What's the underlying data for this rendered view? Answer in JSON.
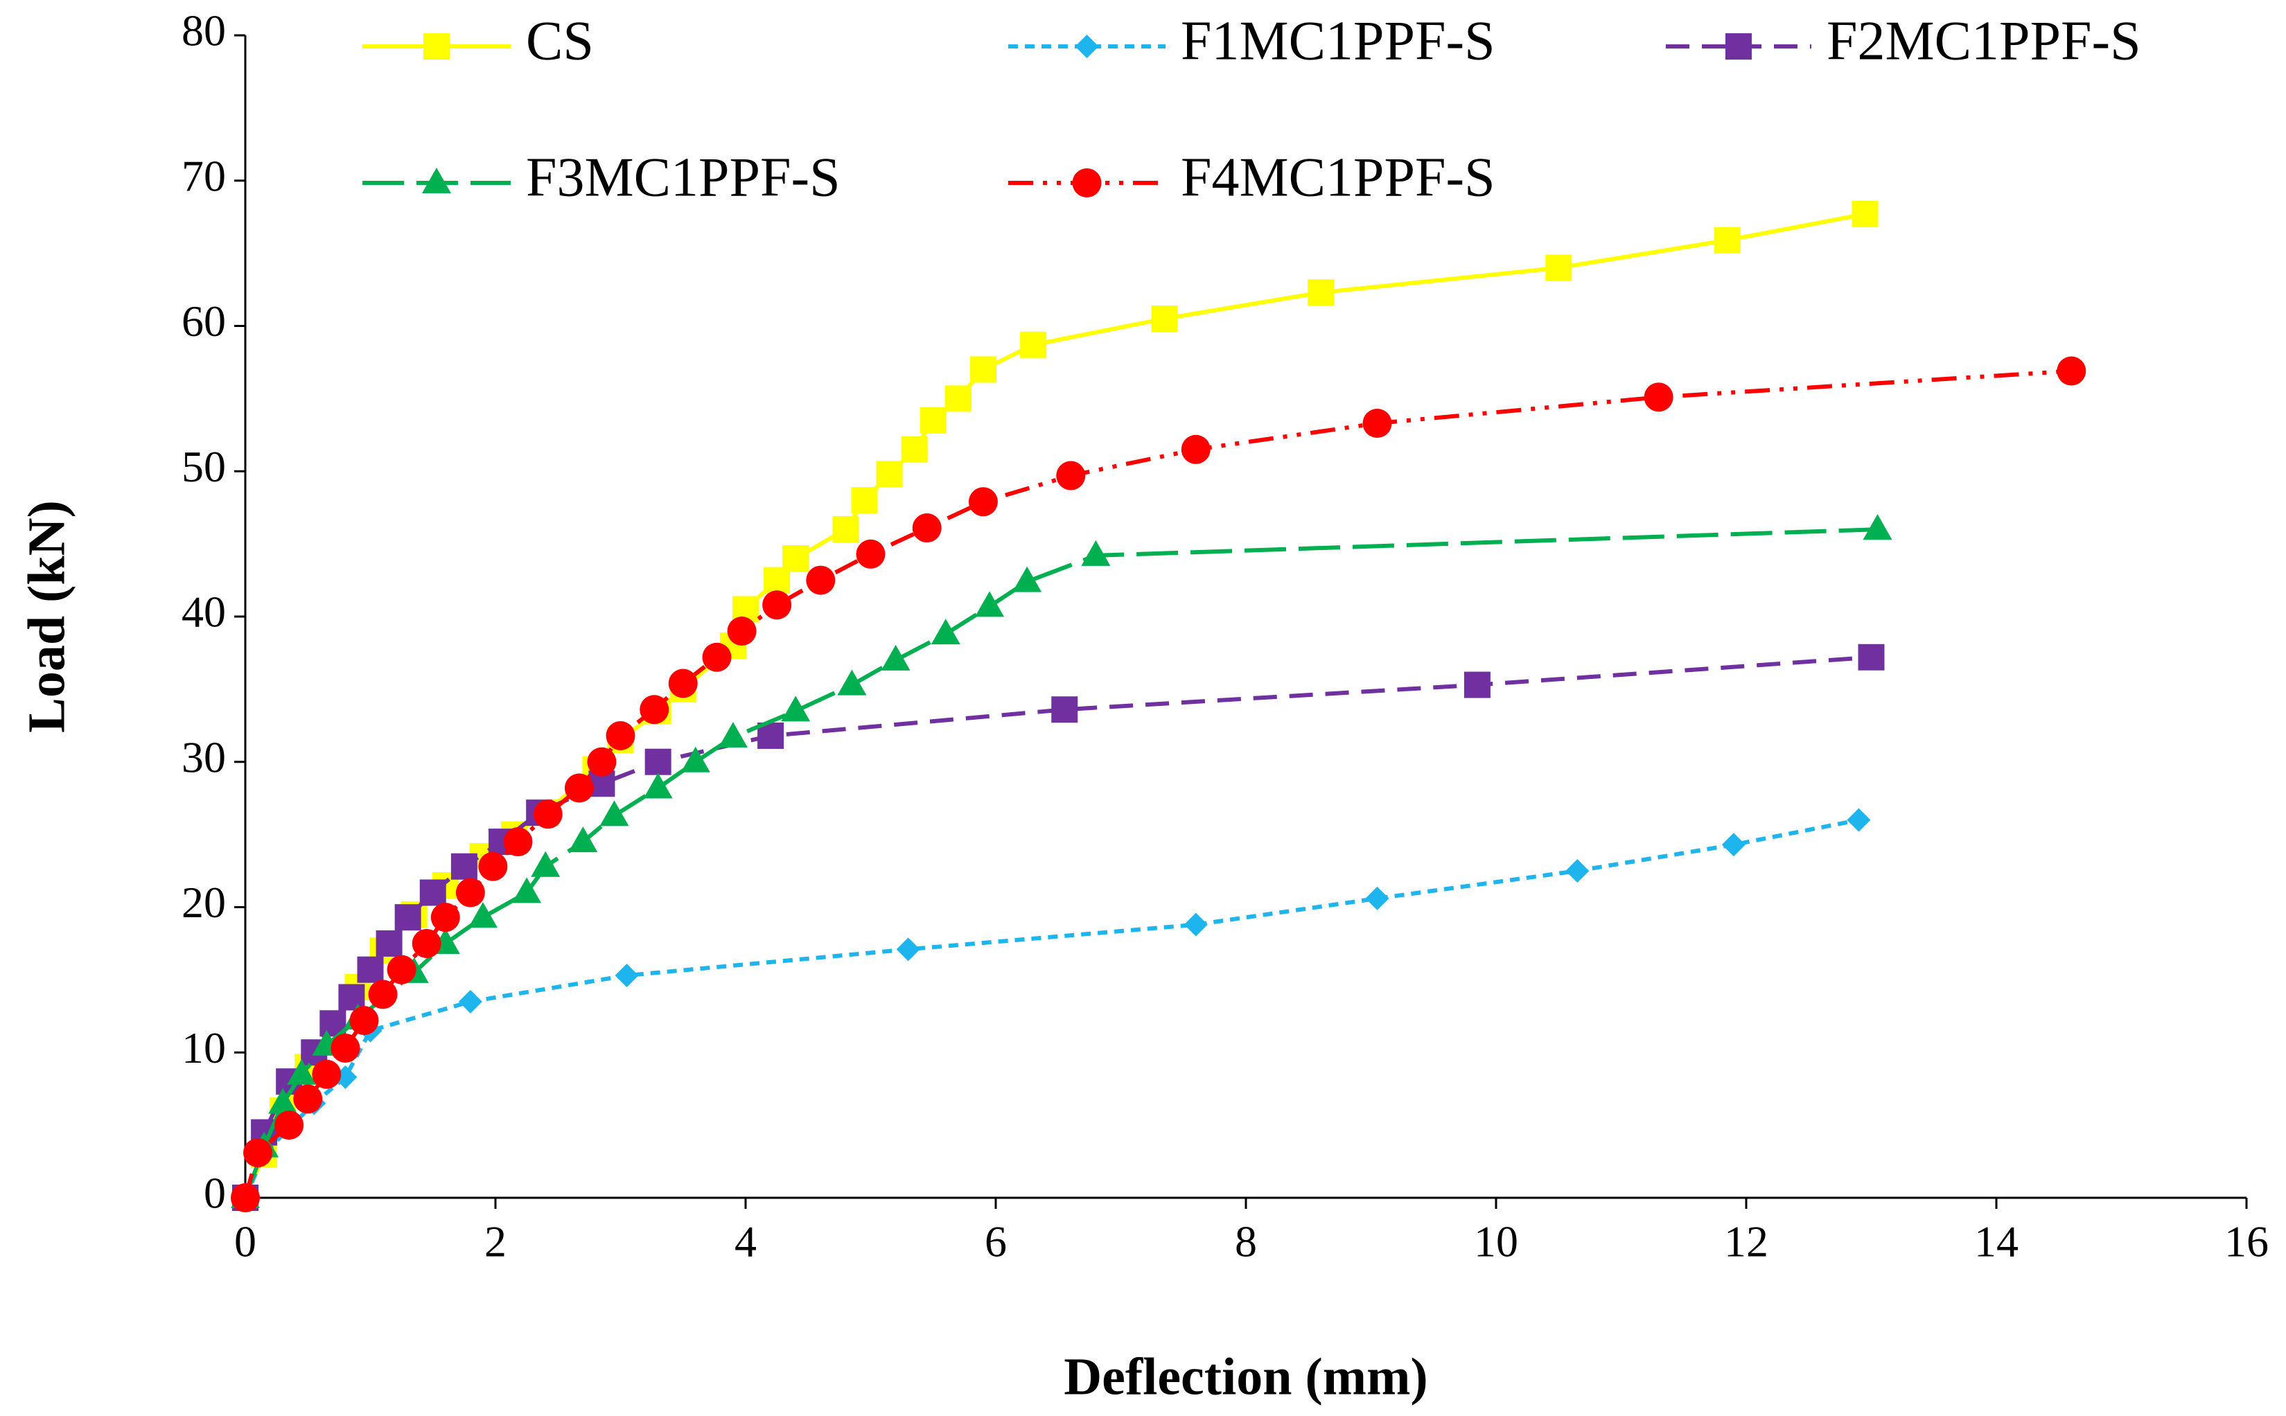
{
  "chart_data": {
    "type": "line",
    "x_label": "Deflection (mm)",
    "y_label": "Load (kN)",
    "xlim": [
      0,
      16
    ],
    "xticks": [
      0,
      2,
      4,
      6,
      8,
      10,
      12,
      14,
      16
    ],
    "ylim": [
      0,
      80
    ],
    "yticks": [
      0,
      10,
      20,
      30,
      40,
      50,
      60,
      70,
      80
    ],
    "grid": false,
    "legend": "top",
    "series": [
      {
        "name": "CS",
        "color": "#ffff00",
        "marker": "square",
        "line_style": "solid",
        "x": [
          0,
          0.15,
          0.3,
          0.5,
          0.7,
          0.9,
          1.1,
          1.35,
          1.6,
          1.9,
          2.15,
          2.4,
          2.8,
          3.0,
          3.3,
          3.5,
          3.9,
          4.0,
          4.25,
          4.4,
          4.8,
          4.95,
          5.15,
          5.35,
          5.5,
          5.7,
          5.9,
          6.3,
          7.35,
          8.6,
          10.5,
          11.85,
          12.95
        ],
        "values": [
          0,
          3,
          6,
          9,
          12,
          14.5,
          17,
          19.5,
          21.5,
          23.5,
          25,
          26.5,
          29.5,
          31.5,
          33.5,
          35,
          38,
          40.5,
          42.5,
          44,
          46,
          48,
          49.8,
          51.5,
          53.5,
          55,
          57,
          58.7,
          60.5,
          62.3,
          64,
          65.9,
          67.7
        ]
      },
      {
        "name": "F1MC1PPF-S",
        "color": "#1eb4ee",
        "marker": "diamond",
        "line_style": "dotted",
        "x": [
          0,
          0.15,
          0.35,
          0.55,
          0.8,
          1.0,
          1.8,
          3.05,
          5.3,
          7.6,
          9.05,
          10.65,
          11.9,
          12.9
        ],
        "values": [
          0,
          3,
          4.8,
          6.5,
          8.3,
          11.5,
          13.5,
          15.3,
          17.1,
          18.8,
          20.6,
          22.5,
          24.3,
          26
        ]
      },
      {
        "name": "F2MC1PPF-S",
        "color": "#7030a0",
        "marker": "square",
        "line_style": "dashed",
        "x": [
          0,
          0.15,
          0.35,
          0.55,
          0.7,
          0.85,
          1.0,
          1.15,
          1.3,
          1.5,
          1.75,
          2.05,
          2.35,
          2.85,
          3.3,
          4.2,
          6.55,
          9.85,
          13.0
        ],
        "values": [
          0,
          4.5,
          8,
          10,
          12,
          13.8,
          15.7,
          17.5,
          19.3,
          21,
          22.8,
          24.5,
          26.5,
          28.5,
          30,
          31.8,
          33.6,
          35.3,
          37.2
        ]
      },
      {
        "name": "F3MC1PPF-S",
        "color": "#00b050",
        "marker": "triangle",
        "line_style": "long-dash",
        "x": [
          0,
          0.15,
          0.3,
          0.45,
          0.65,
          0.9,
          1.35,
          1.6,
          1.9,
          2.25,
          2.4,
          2.7,
          2.95,
          3.3,
          3.6,
          3.9,
          4.4,
          4.85,
          5.2,
          5.6,
          5.95,
          6.25,
          6.8,
          13.05
        ],
        "values": [
          0,
          3.5,
          6.5,
          8.5,
          10.5,
          12.3,
          15.5,
          17.5,
          19.3,
          21,
          22.8,
          24.5,
          26.3,
          28.2,
          30,
          31.7,
          33.5,
          35.3,
          37,
          38.8,
          40.7,
          42.4,
          44.2,
          46
        ]
      },
      {
        "name": "F4MC1PPF-S",
        "color": "#ff0000",
        "marker": "circle",
        "line_style": "dash-dot-dot",
        "x": [
          0,
          0.1,
          0.35,
          0.5,
          0.65,
          0.8,
          0.95,
          1.1,
          1.25,
          1.45,
          1.6,
          1.8,
          1.98,
          2.18,
          2.42,
          2.67,
          2.85,
          3.0,
          3.27,
          3.5,
          3.77,
          3.97,
          4.25,
          4.6,
          5.0,
          5.45,
          5.9,
          6.6,
          7.6,
          9.05,
          11.3,
          14.6
        ],
        "values": [
          0,
          3.1,
          5,
          6.8,
          8.5,
          10.3,
          12.2,
          14,
          15.7,
          17.5,
          19.3,
          21,
          22.8,
          24.5,
          26.4,
          28.2,
          30,
          31.8,
          33.6,
          35.4,
          37.2,
          39,
          40.8,
          42.5,
          44.3,
          46.1,
          47.9,
          49.7,
          51.5,
          53.3,
          55.1,
          56.9
        ]
      }
    ]
  }
}
